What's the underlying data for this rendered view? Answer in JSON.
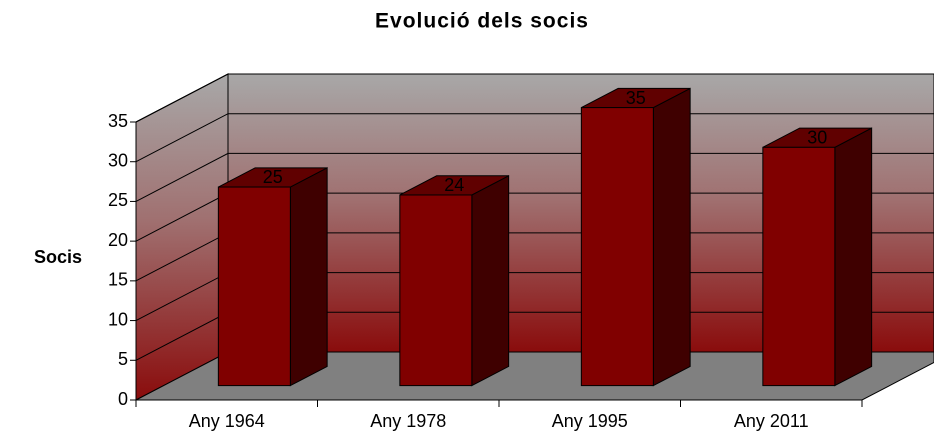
{
  "chart_data": {
    "type": "bar3d",
    "title": "Evolució dels socis",
    "y_label": "Socis",
    "categories": [
      "Any 1964",
      "Any 1978",
      "Any 1995",
      "Any 2011"
    ],
    "values": [
      25,
      24,
      35,
      30
    ],
    "color": "#800000",
    "ylim": [
      0,
      35
    ],
    "yticks": [
      0,
      5,
      10,
      15,
      20,
      25,
      30,
      35
    ],
    "grid": true
  }
}
